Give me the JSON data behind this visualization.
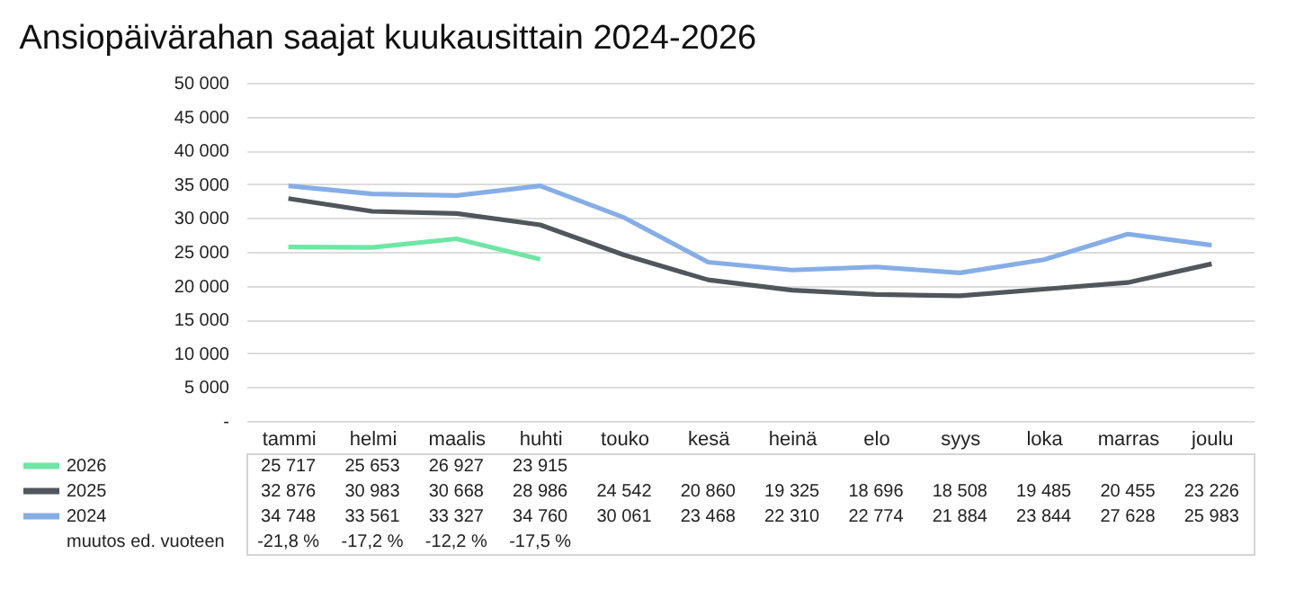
{
  "chart_data": {
    "type": "line",
    "title": "Ansiopäivärahan saajat kuukausittain 2024-2026",
    "categories": [
      "tammi",
      "helmi",
      "maalis",
      "huhti",
      "touko",
      "kesä",
      "heinä",
      "elo",
      "syys",
      "loka",
      "marras",
      "joulu"
    ],
    "series": [
      {
        "name": "2026",
        "color": "#6ee6a4",
        "values": [
          25717,
          25653,
          26927,
          23915,
          null,
          null,
          null,
          null,
          null,
          null,
          null,
          null
        ]
      },
      {
        "name": "2025",
        "color": "#50565c",
        "values": [
          32876,
          30983,
          30668,
          28986,
          24542,
          20860,
          19325,
          18696,
          18508,
          19485,
          20455,
          23226
        ]
      },
      {
        "name": "2024",
        "color": "#86aee6",
        "values": [
          34748,
          33561,
          33327,
          34760,
          30061,
          23468,
          22310,
          22774,
          21884,
          23844,
          27628,
          25983
        ]
      }
    ],
    "ylim": [
      0,
      50000
    ],
    "yticks": [
      {
        "value": 0,
        "label": "-"
      },
      {
        "value": 5000,
        "label": "5 000"
      },
      {
        "value": 10000,
        "label": "10 000"
      },
      {
        "value": 15000,
        "label": "15 000"
      },
      {
        "value": 20000,
        "label": "20 000"
      },
      {
        "value": 25000,
        "label": "25 000"
      },
      {
        "value": 30000,
        "label": "30 000"
      },
      {
        "value": 35000,
        "label": "35 000"
      },
      {
        "value": 40000,
        "label": "40 000"
      },
      {
        "value": 45000,
        "label": "45 000"
      },
      {
        "value": 50000,
        "label": "50 000"
      }
    ],
    "grid": "y",
    "legend": "bottom",
    "data_labels": true,
    "annotations": [
      "muutos ed. vuoteen",
      "-21,8 %",
      "-17,2 %",
      "-12,2 %",
      "-17,5 %"
    ]
  }
}
